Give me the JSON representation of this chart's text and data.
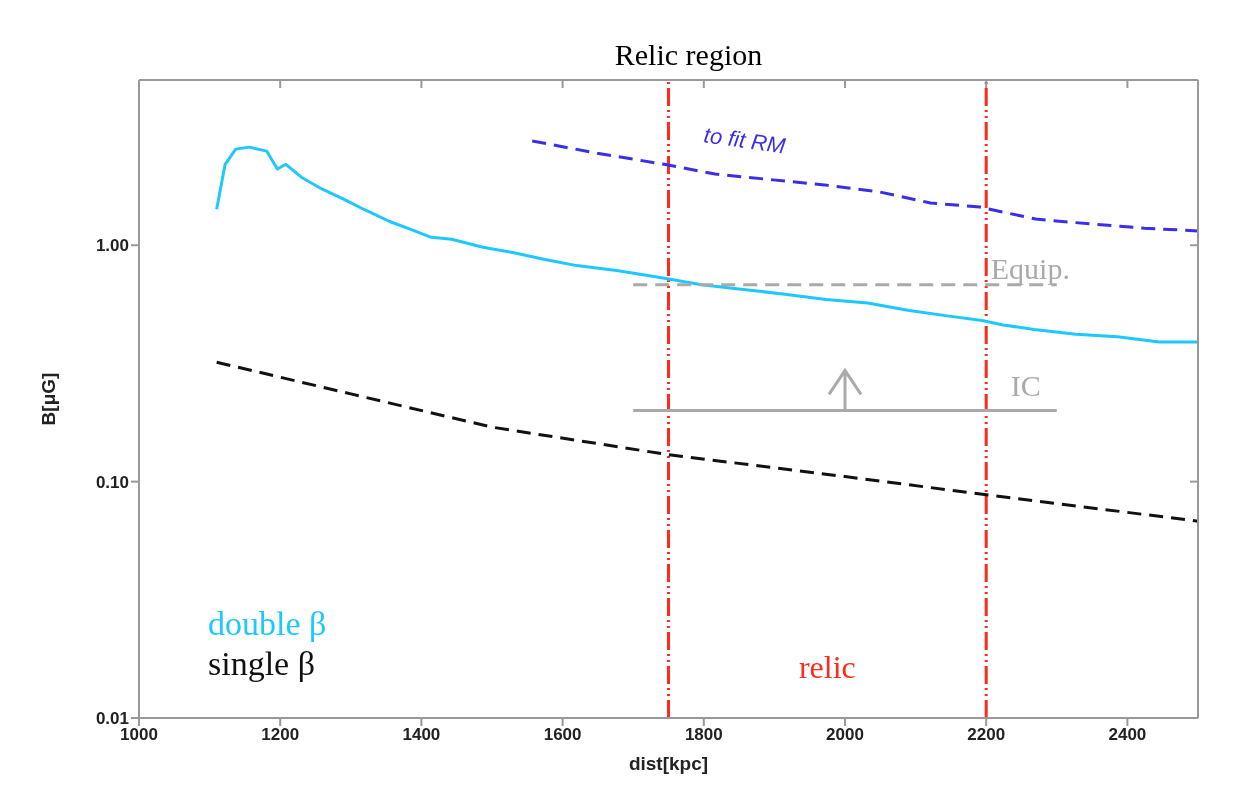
{
  "chart_data": {
    "type": "line",
    "title": "Relic region",
    "xlabel": "dist[kpc]",
    "ylabel": "B[μG]",
    "log": "y",
    "xlim": [
      1000,
      2500
    ],
    "xticks": [
      1000,
      1200,
      1400,
      1600,
      1800,
      2000,
      2200,
      2400
    ],
    "ylim": [
      0.01,
      5
    ],
    "yticks": [
      {
        "value": 0.01,
        "label": "0.01"
      },
      {
        "value": 0.1,
        "label": "0.10"
      },
      {
        "value": 1,
        "label": "1.00"
      }
    ],
    "grid": false,
    "legend": "bottom left",
    "series": [
      {
        "name": "double β",
        "color": "#1ec8ff",
        "line_style": "solid",
        "x": [
          1110,
          1122,
          1137,
          1156,
          1181,
          1196,
          1208,
          1230,
          1259,
          1289,
          1318,
          1355,
          1384,
          1414,
          1443,
          1487,
          1531,
          1575,
          1620,
          1679,
          1738,
          1797,
          1856,
          1915,
          1973,
          2032,
          2091,
          2150,
          2194,
          2224,
          2268,
          2327,
          2386,
          2445,
          2500
        ],
        "values": [
          1.42,
          2.2,
          2.55,
          2.6,
          2.5,
          2.1,
          2.2,
          1.94,
          1.73,
          1.57,
          1.42,
          1.26,
          1.17,
          1.08,
          1.06,
          0.98,
          0.93,
          0.87,
          0.82,
          0.78,
          0.73,
          0.68,
          0.65,
          0.62,
          0.59,
          0.57,
          0.53,
          0.5,
          0.48,
          0.46,
          0.44,
          0.42,
          0.41,
          0.39,
          0.39
        ]
      },
      {
        "name": "single β",
        "color": "#111111",
        "line_style": "dashed",
        "x": [
          1110,
          1300,
          1500,
          1750,
          2000,
          2200,
          2500
        ],
        "values": [
          0.32,
          0.235,
          0.17,
          0.13,
          0.105,
          0.088,
          0.068
        ]
      },
      {
        "name": "to fit RM",
        "color": "#3a2ee8",
        "line_style": "dashed",
        "x": [
          1557,
          1649,
          1744,
          1816,
          1898,
          1971,
          2049,
          2121,
          2191,
          2270,
          2348,
          2424,
          2500
        ],
        "values": [
          2.76,
          2.45,
          2.2,
          2.0,
          1.89,
          1.8,
          1.68,
          1.51,
          1.45,
          1.29,
          1.23,
          1.18,
          1.15
        ]
      },
      {
        "name": "Equip.",
        "color": "#aaaaaa",
        "line_style": "dashed",
        "x": [
          1700,
          2300
        ],
        "values": [
          0.68,
          0.68
        ]
      },
      {
        "name": "IC",
        "color": "#aaaaaa",
        "line_style": "solid",
        "x": [
          1700,
          2300
        ],
        "values": [
          0.2,
          0.2
        ]
      }
    ],
    "ref_lines": [
      {
        "axis": "x",
        "value": 1750,
        "color": "#ff2a1a",
        "line_style": "dashed"
      },
      {
        "axis": "x",
        "value": 2200,
        "color": "#ff2a1a",
        "line_style": "dashed"
      }
    ],
    "annotations": [
      "relic"
    ]
  }
}
